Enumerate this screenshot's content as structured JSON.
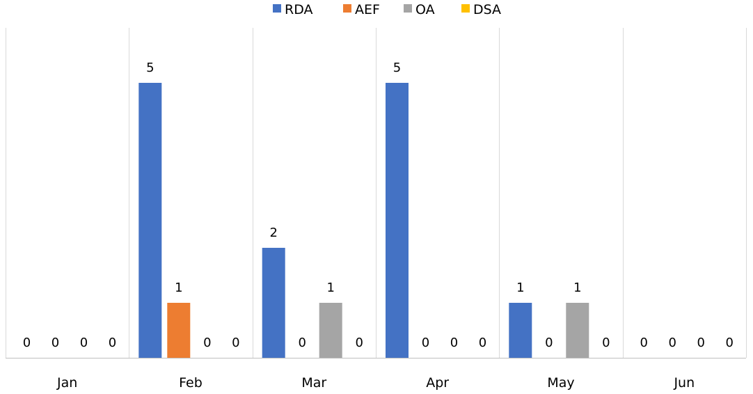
{
  "chart_data": {
    "type": "bar",
    "title": "",
    "xlabel": "",
    "ylabel": "",
    "categories": [
      "Jan",
      "Feb",
      "Mar",
      "Apr",
      "May",
      "Jun"
    ],
    "series": [
      {
        "name": "RDA",
        "color": "#4472C4",
        "values": [
          0,
          5,
          2,
          5,
          1,
          0
        ]
      },
      {
        "name": "AEF",
        "color": "#ED7D31",
        "values": [
          0,
          1,
          0,
          0,
          0,
          0
        ]
      },
      {
        "name": "OA",
        "color": "#A5A5A5",
        "values": [
          0,
          0,
          1,
          0,
          1,
          0
        ]
      },
      {
        "name": "DSA",
        "color": "#FFC000",
        "values": [
          0,
          0,
          0,
          0,
          0,
          0
        ]
      }
    ],
    "ylim": [
      0,
      5
    ],
    "grid": false,
    "category_separators": true,
    "data_labels": true,
    "legend": {
      "position": "top-center"
    }
  }
}
